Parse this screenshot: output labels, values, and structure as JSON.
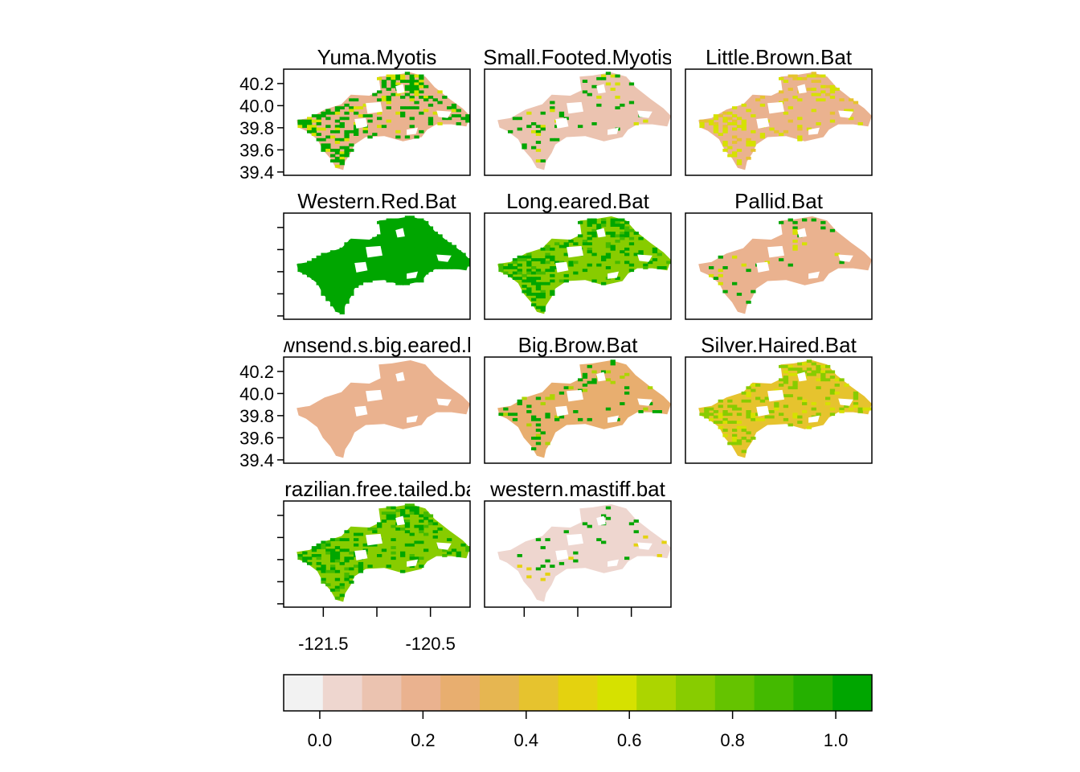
{
  "chart_data": {
    "type": "heatmap",
    "layout": {
      "rows": 4,
      "cols": 3
    },
    "shared_axes": {
      "y_ticks": [
        "40.2",
        "40.0",
        "39.8",
        "39.6",
        "39.4"
      ],
      "y_tick_values": [
        40.2,
        40.0,
        39.8,
        39.6,
        39.4
      ],
      "ylim": [
        39.37,
        40.33
      ],
      "x_ticks": [
        "-121.5",
        "-120.5"
      ],
      "x_tick_values": [
        -121.5,
        -120.5
      ],
      "x_minor_ticks": [
        -121.0
      ],
      "xlim": [
        -121.87,
        -120.13
      ],
      "y_labels_on_rows": [
        1,
        3
      ],
      "x_labels_on_columns": [
        1
      ]
    },
    "panels": [
      {
        "title": "Yuma.Myotis",
        "dominant_level": 0.2,
        "high_value_fraction": 0.35,
        "high_level": 1.0
      },
      {
        "title": "Small.Footed.Myotis",
        "dominant_level": 0.1,
        "high_value_fraction": 0.1,
        "high_level": 1.0
      },
      {
        "title": "Little.Brown.Bat",
        "dominant_level": 0.2,
        "high_value_fraction": 0.2,
        "high_level": 0.6
      },
      {
        "title": "Western.Red.Bat",
        "dominant_level": 1.0,
        "high_value_fraction": 1.0,
        "high_level": 1.0
      },
      {
        "title": "Long.eared.Bat",
        "dominant_level": 0.7,
        "high_value_fraction": 0.3,
        "high_level": 1.0
      },
      {
        "title": "Pallid.Bat",
        "dominant_level": 0.2,
        "high_value_fraction": 0.08,
        "high_level": 1.0
      },
      {
        "title": "Townsend.s.big.eared.bat",
        "dominant_level": 0.2,
        "high_value_fraction": 0.0,
        "high_level": 0.2
      },
      {
        "title": "Big.Brow.Bat",
        "dominant_level": 0.3,
        "high_value_fraction": 0.12,
        "high_level": 1.0
      },
      {
        "title": "Silver.Haired.Bat",
        "dominant_level": 0.4,
        "high_value_fraction": 0.25,
        "high_level": 0.7
      },
      {
        "title": "Brazilian.free.tailed.bat",
        "dominant_level": 0.7,
        "high_value_fraction": 0.3,
        "high_level": 1.0
      },
      {
        "title": "western.mastiff.bat",
        "dominant_level": 0.05,
        "high_value_fraction": 0.07,
        "high_level": 1.0
      }
    ],
    "legend": {
      "placement": "bottom",
      "ticks": [
        "0.0",
        "0.2",
        "0.4",
        "0.6",
        "0.8",
        "1.0"
      ],
      "tick_values": [
        0.0,
        0.2,
        0.4,
        0.6,
        0.8,
        1.0
      ],
      "range": [
        -0.07,
        1.07
      ],
      "colors": [
        "#F2F2F2",
        "#EED6CF",
        "#EBC3B0",
        "#EAB28F",
        "#E8AE6F",
        "#E6B651",
        "#E6C32E",
        "#E4D20F",
        "#D6E100",
        "#ACD500",
        "#88CC00",
        "#65C300",
        "#44BA00",
        "#25B000",
        "#00A600"
      ]
    }
  }
}
